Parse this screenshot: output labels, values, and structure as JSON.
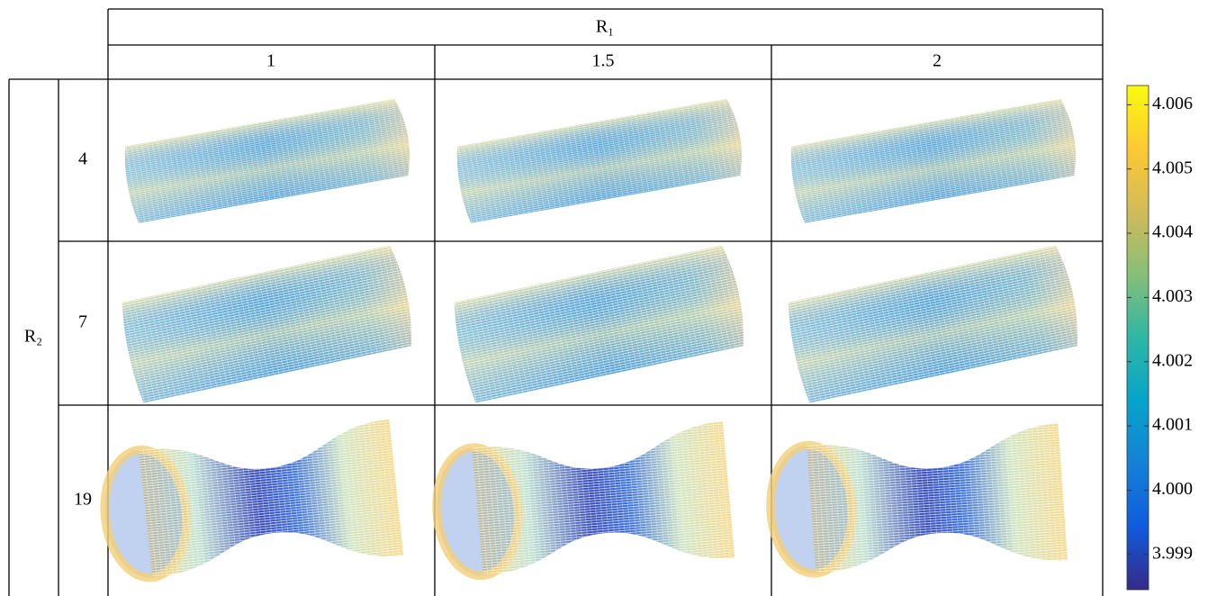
{
  "table": {
    "col_group_header": "R₁",
    "row_group_header": "R₂",
    "columns": [
      "1",
      "1.5",
      "2"
    ],
    "rows": [
      "4",
      "7",
      "19"
    ]
  },
  "colorbar": {
    "lim": [
      3.99845,
      4.0063
    ],
    "ticks": [
      {
        "value": 4.006,
        "label": "4.006"
      },
      {
        "value": 4.005,
        "label": "4.005"
      },
      {
        "value": 4.004,
        "label": "4.004"
      },
      {
        "value": 4.003,
        "label": "4.003"
      },
      {
        "value": 4.002,
        "label": "4.002"
      },
      {
        "value": 4.001,
        "label": "4.001"
      },
      {
        "value": 4.0,
        "label": "4.000"
      },
      {
        "value": 3.999,
        "label": "3.999"
      }
    ],
    "colormap": [
      "#352a87",
      "#0f5cdd",
      "#1481d6",
      "#06a4ca",
      "#2eb7a4",
      "#87bf77",
      "#d1bb59",
      "#fec832",
      "#f9fb0e"
    ]
  }
}
